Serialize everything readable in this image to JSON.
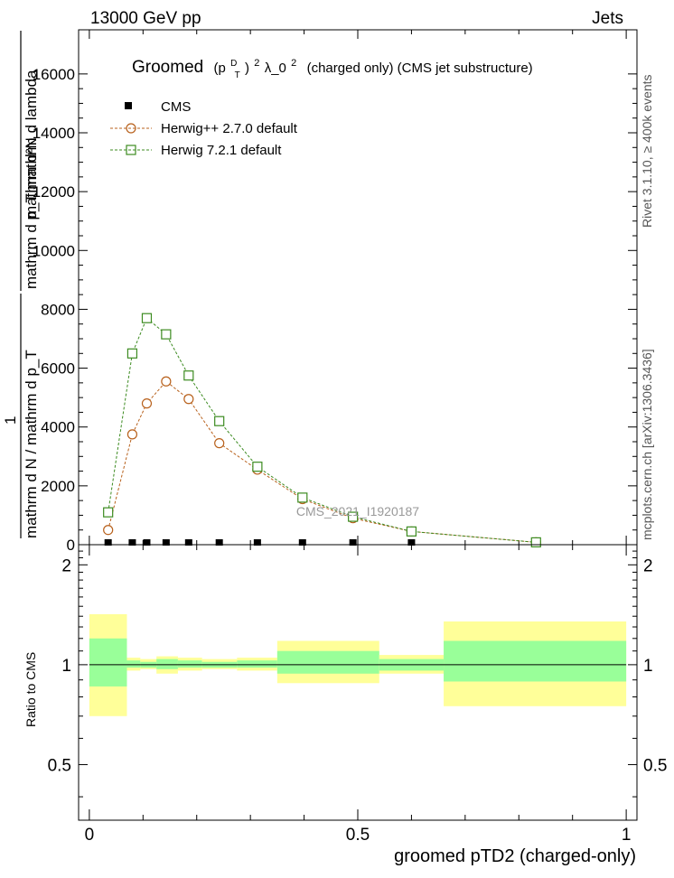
{
  "header": {
    "left": "13000 GeV pp",
    "right": "Jets"
  },
  "side_labels": {
    "rivet": "Rivet 3.1.10, ≥ 400k events",
    "mcplots": "mcplots.cern.ch [arXiv:1306.3436]"
  },
  "watermark": "CMS_2021_I1920187",
  "chart_data": [
    {
      "type": "scatter",
      "title": "Groomed (p_T^D)^2 λ_0^2 (charged only) (CMS jet substructure)",
      "title_parts": {
        "prefix": "Groomed",
        "middle": "(p",
        "sup_d": "D",
        "sub_t": "T",
        "close_sq": ")",
        "sq": "2",
        "lambda": " λ_0",
        "sq2": "2",
        "suffix": "(charged only) (CMS jet substructure)"
      },
      "ylabel": {
        "numerator_top": "mathrm d²N",
        "numerator_bottom": "mathrm d p_T mathrm d lambda",
        "factor": "1",
        "denominator": "mathrm d N / mathrm d p_T"
      },
      "xlim": [
        -0.02,
        1.02
      ],
      "ylim": [
        0,
        17500
      ],
      "y_ticks": [
        0,
        2000,
        4000,
        6000,
        8000,
        10000,
        12000,
        14000,
        16000
      ],
      "y_tick_labels": [
        "0",
        "2000",
        "4000",
        "6000",
        "8000",
        "10000",
        "12000",
        "14000",
        "16000"
      ],
      "legend": {
        "placement": "top-left",
        "entries": [
          "CMS",
          "Herwig++ 2.7.0 default",
          "Herwig 7.2.1 default"
        ]
      },
      "series": [
        {
          "name": "CMS",
          "color": "#000000",
          "marker": "filled-square",
          "x": [
            0.035,
            0.08,
            0.107,
            0.143,
            0.185,
            0.242,
            0.313,
            0.397,
            0.491,
            0.6,
            0.832
          ],
          "y": [
            0,
            0,
            0,
            0,
            0,
            0,
            0,
            0,
            0,
            0,
            0
          ]
        },
        {
          "name": "Herwig++ 2.7.0 default",
          "color": "#b8611c",
          "marker": "open-circle",
          "x": [
            0.035,
            0.08,
            0.107,
            0.143,
            0.185,
            0.242,
            0.313,
            0.397,
            0.491,
            0.6,
            0.832
          ],
          "y": [
            500,
            3750,
            4800,
            5550,
            4950,
            3450,
            2550,
            1550,
            900,
            450,
            80
          ]
        },
        {
          "name": "Herwig 7.2.1 default",
          "color": "#3c8b20",
          "marker": "open-square",
          "x": [
            0.035,
            0.08,
            0.107,
            0.143,
            0.185,
            0.242,
            0.313,
            0.397,
            0.491,
            0.6,
            0.832
          ],
          "y": [
            1100,
            6500,
            7700,
            7150,
            5750,
            4200,
            2650,
            1600,
            950,
            450,
            80
          ]
        }
      ]
    },
    {
      "type": "area",
      "ylabel": "Ratio to CMS",
      "xlabel": "groomed pTD2 (charged-only)",
      "xlim": [
        -0.02,
        1.02
      ],
      "ylim": [
        0.34,
        2.3
      ],
      "x_ticks": [
        0,
        0.5,
        1
      ],
      "x_tick_labels": [
        "0",
        "0.5",
        "1"
      ],
      "y_ticks": [
        0.5,
        1,
        2
      ],
      "y_tick_labels": [
        "0.5",
        "1",
        "2"
      ],
      "reference_line": 1,
      "bands": [
        {
          "x0": 0.0,
          "x1": 0.07,
          "yellow": [
            0.7,
            1.42
          ],
          "green": [
            0.86,
            1.2
          ]
        },
        {
          "x0": 0.07,
          "x1": 0.095,
          "yellow": [
            0.96,
            1.05
          ],
          "green": [
            0.98,
            1.03
          ]
        },
        {
          "x0": 0.095,
          "x1": 0.125,
          "yellow": [
            0.97,
            1.04
          ],
          "green": [
            0.98,
            1.02
          ]
        },
        {
          "x0": 0.125,
          "x1": 0.165,
          "yellow": [
            0.94,
            1.06
          ],
          "green": [
            0.97,
            1.04
          ]
        },
        {
          "x0": 0.165,
          "x1": 0.21,
          "yellow": [
            0.96,
            1.05
          ],
          "green": [
            0.98,
            1.03
          ]
        },
        {
          "x0": 0.21,
          "x1": 0.275,
          "yellow": [
            0.97,
            1.04
          ],
          "green": [
            0.98,
            1.02
          ]
        },
        {
          "x0": 0.275,
          "x1": 0.35,
          "yellow": [
            0.96,
            1.05
          ],
          "green": [
            0.98,
            1.03
          ]
        },
        {
          "x0": 0.35,
          "x1": 0.54,
          "yellow": [
            0.88,
            1.18
          ],
          "green": [
            0.94,
            1.1
          ]
        },
        {
          "x0": 0.54,
          "x1": 0.66,
          "yellow": [
            0.94,
            1.07
          ],
          "green": [
            0.96,
            1.04
          ]
        },
        {
          "x0": 0.66,
          "x1": 1.0,
          "yellow": [
            0.75,
            1.35
          ],
          "green": [
            0.89,
            1.18
          ]
        }
      ],
      "colors": {
        "yellow": "#ffff99",
        "green": "#99ff99"
      }
    }
  ]
}
